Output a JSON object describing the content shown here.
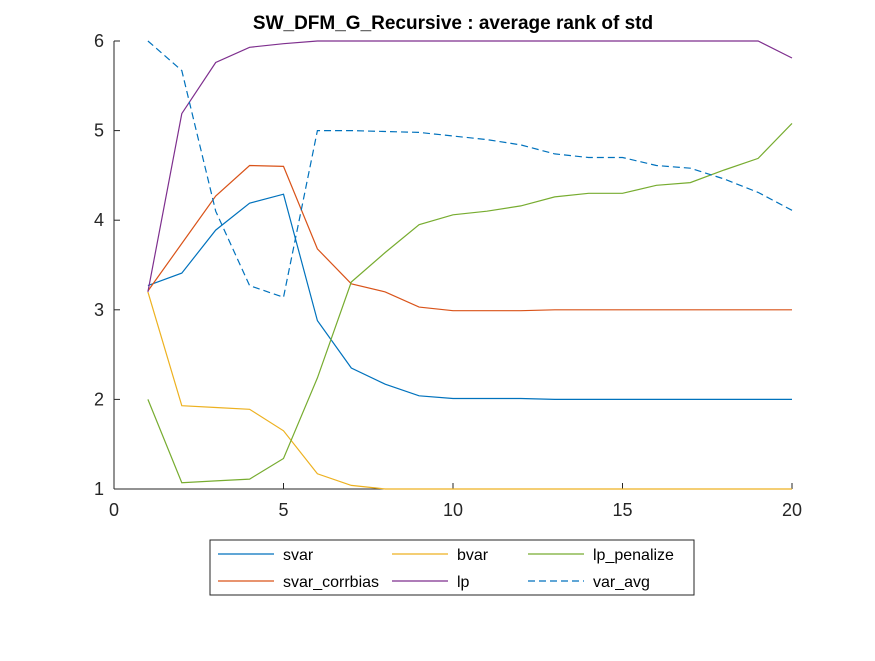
{
  "chart_data": {
    "type": "line",
    "title": "SW_DFM_G_Recursive : average rank of std",
    "xlabel": "",
    "ylabel": "",
    "xlim": [
      0,
      20
    ],
    "ylim": [
      1,
      6
    ],
    "xticks": [
      0,
      5,
      10,
      15,
      20
    ],
    "yticks": [
      1,
      2,
      3,
      4,
      5,
      6
    ],
    "grid": false,
    "legend_position": "bottom-outside",
    "x": [
      1,
      2,
      3,
      4,
      5,
      6,
      7,
      8,
      9,
      10,
      11,
      12,
      13,
      14,
      15,
      16,
      17,
      18,
      19,
      20
    ],
    "series": [
      {
        "name": "svar",
        "color": "#0072BD",
        "dash": "solid",
        "values": [
          3.27,
          3.41,
          3.89,
          4.19,
          4.29,
          2.88,
          2.35,
          2.17,
          2.04,
          2.01,
          2.01,
          2.01,
          2.0,
          2.0,
          2.0,
          2.0,
          2.0,
          2.0,
          2.0,
          2.0
        ]
      },
      {
        "name": "svar_corrbias",
        "color": "#D95319",
        "dash": "solid",
        "values": [
          3.21,
          3.74,
          4.27,
          4.61,
          4.6,
          3.68,
          3.29,
          3.2,
          3.03,
          2.99,
          2.99,
          2.99,
          3.0,
          3.0,
          3.0,
          3.0,
          3.0,
          3.0,
          3.0,
          3.0
        ]
      },
      {
        "name": "bvar",
        "color": "#EDB120",
        "dash": "solid",
        "values": [
          3.2,
          1.93,
          1.91,
          1.89,
          1.65,
          1.17,
          1.04,
          1.0,
          1.0,
          1.0,
          1.0,
          1.0,
          1.0,
          1.0,
          1.0,
          1.0,
          1.0,
          1.0,
          1.0,
          1.0
        ]
      },
      {
        "name": "lp",
        "color": "#7E2F8E",
        "dash": "solid",
        "values": [
          3.2,
          5.19,
          5.76,
          5.93,
          5.97,
          6.0,
          6.0,
          6.0,
          6.0,
          6.0,
          6.0,
          6.0,
          6.0,
          6.0,
          6.0,
          6.0,
          6.0,
          6.0,
          6.0,
          5.81
        ]
      },
      {
        "name": "lp_penalize",
        "color": "#77AC30",
        "dash": "solid",
        "values": [
          2.0,
          1.07,
          1.09,
          1.11,
          1.34,
          2.24,
          3.31,
          3.64,
          3.95,
          4.06,
          4.1,
          4.16,
          4.26,
          4.3,
          4.3,
          4.39,
          4.42,
          4.56,
          4.69,
          5.08
        ]
      },
      {
        "name": "var_avg",
        "color": "#0072BD",
        "dash": "dashed",
        "values": [
          6.0,
          5.67,
          4.1,
          3.27,
          3.14,
          5.0,
          5.0,
          4.99,
          4.98,
          4.94,
          4.9,
          4.84,
          4.74,
          4.7,
          4.7,
          4.61,
          4.58,
          4.46,
          4.31,
          4.11
        ]
      }
    ]
  }
}
